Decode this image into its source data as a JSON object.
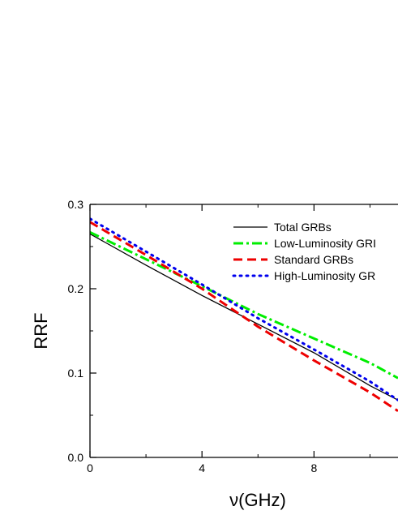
{
  "chart_data": {
    "type": "line",
    "xlabel": "ν(GHz)",
    "ylabel": "RRF",
    "xlim": [
      0,
      11
    ],
    "ylim": [
      0.0,
      0.3
    ],
    "xticks": [
      0,
      4,
      8
    ],
    "xtick_labels": [
      "0",
      "4",
      "8"
    ],
    "yticks": [
      0.0,
      0.1,
      0.2,
      0.3
    ],
    "ytick_labels": [
      "0.0",
      "0.1",
      "0.2",
      "0.3"
    ],
    "grid": false,
    "legend_position": "top-right",
    "series": [
      {
        "name": "Total GRBs",
        "style": "solid",
        "color": "#000000",
        "x": [
          0,
          2,
          4,
          6,
          8,
          10,
          11
        ],
        "y": [
          0.265,
          0.228,
          0.192,
          0.158,
          0.124,
          0.085,
          0.068
        ]
      },
      {
        "name": "Low-Luminosity GRI",
        "style": "dashdot",
        "color": "#00ee00",
        "x": [
          0,
          2,
          4,
          6,
          8,
          10,
          11
        ],
        "y": [
          0.267,
          0.235,
          0.203,
          0.17,
          0.141,
          0.112,
          0.094
        ]
      },
      {
        "name": "Standard GRBs",
        "style": "dashed",
        "color": "#ee0000",
        "x": [
          0,
          2,
          4,
          6,
          8,
          10,
          11
        ],
        "y": [
          0.279,
          0.24,
          0.2,
          0.155,
          0.115,
          0.077,
          0.055
        ]
      },
      {
        "name": "High-Luminosity GR",
        "style": "dotted",
        "color": "#0000ee",
        "x": [
          0,
          2,
          4,
          6,
          8,
          10,
          11
        ],
        "y": [
          0.283,
          0.244,
          0.205,
          0.165,
          0.128,
          0.09,
          0.068
        ]
      }
    ]
  }
}
